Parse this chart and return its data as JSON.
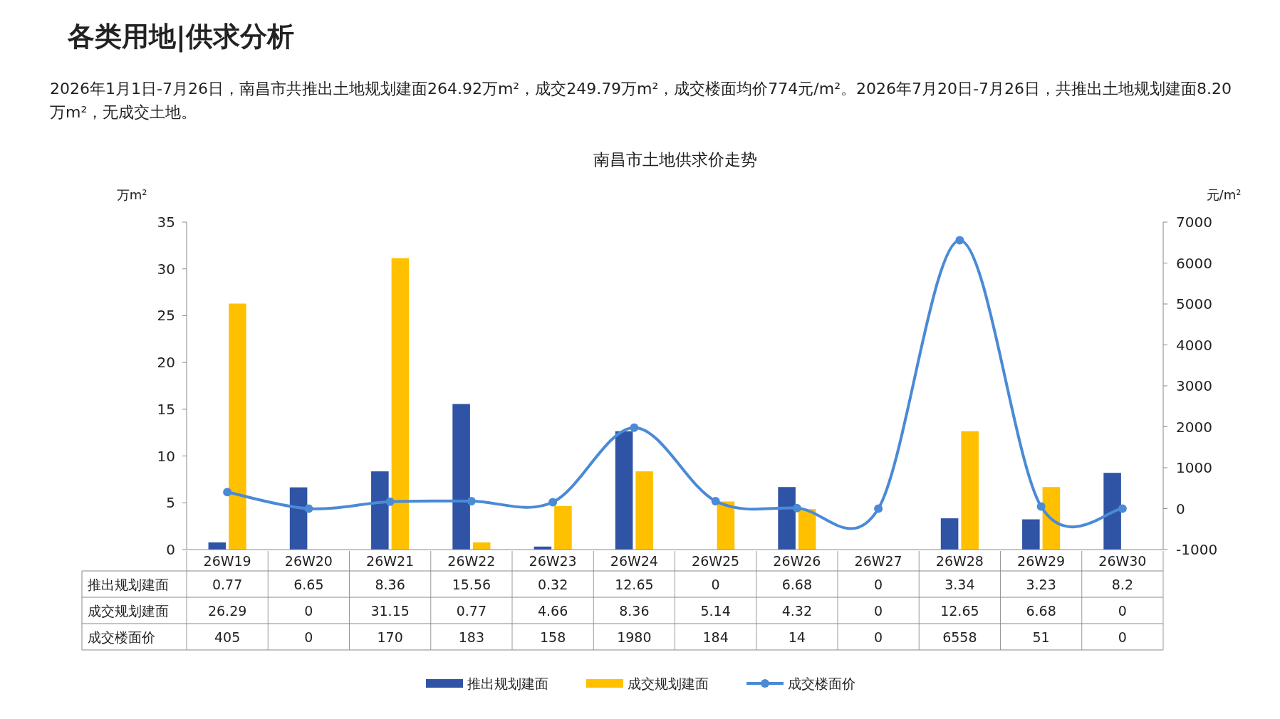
{
  "chart_data": {
    "type": "bar",
    "title": "南昌市土地供求价走势",
    "annotations": [
      "各类用地|供求分析",
      "2026年1月1日-7月26日，南昌市共推出土地规划建面264.92万m²，成交249.79万m²，成交楼面均价774元/m²。2026年7月20日-7月26日，共推出土地规划建面8.20万m²，无成交土地。"
    ],
    "ylabel": "万m²",
    "y2label": "元/m²",
    "categories": [
      "26W19",
      "26W20",
      "26W21",
      "26W22",
      "26W23",
      "26W24",
      "26W25",
      "26W26",
      "26W27",
      "26W28",
      "26W29",
      "26W30"
    ],
    "series": [
      {
        "name": "推出规划建面",
        "color": "#2f54a5",
        "values": [
          0.77,
          6.65,
          8.36,
          15.56,
          0.32,
          12.65,
          0,
          6.68,
          0,
          3.34,
          3.23,
          8.2
        ]
      },
      {
        "name": "成交规划建面",
        "color": "#ffc000",
        "values": [
          26.29,
          0,
          31.15,
          0.77,
          4.66,
          8.36,
          5.14,
          4.32,
          0,
          12.65,
          6.68,
          0
        ]
      },
      {
        "name": "成交楼面价",
        "type": "line",
        "axis": "y2",
        "color": "#4a8ad6",
        "marker": "circle",
        "values": [
          405,
          0,
          170,
          183,
          158,
          1980,
          184,
          14,
          0,
          6558,
          51,
          0
        ]
      }
    ],
    "ylim": [
      0,
      35
    ],
    "yticks": [
      0,
      5,
      10,
      15,
      20,
      25,
      30,
      35
    ],
    "y2lim": [
      -1000,
      7000
    ],
    "y2ticks": [
      -1000,
      0,
      1000,
      2000,
      3000,
      4000,
      5000,
      6000,
      7000
    ],
    "data_labels": true,
    "legend": "bottom",
    "grid": false
  }
}
